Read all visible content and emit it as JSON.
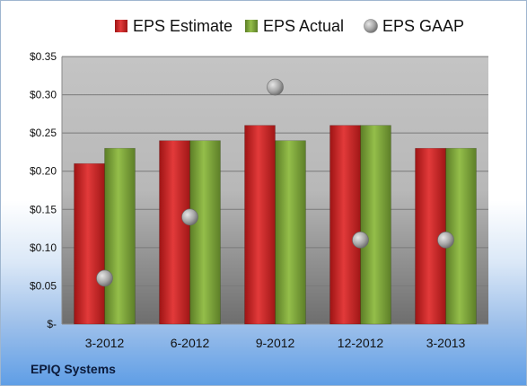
{
  "company": "EPIQ Systems",
  "legend": [
    {
      "label": "EPS Estimate",
      "shape": "square",
      "color": "#cc1f1f"
    },
    {
      "label": "EPS Actual",
      "shape": "square",
      "color": "#7da337"
    },
    {
      "label": "EPS GAAP",
      "shape": "circle",
      "color": "#a9a9a9"
    }
  ],
  "chart_data": {
    "type": "bar",
    "categories": [
      "3-2012",
      "6-2012",
      "9-2012",
      "12-2012",
      "3-2013"
    ],
    "series": [
      {
        "name": "EPS Estimate",
        "type": "bar",
        "color": "#cc1f1f",
        "values": [
          0.21,
          0.24,
          0.26,
          0.26,
          0.23
        ]
      },
      {
        "name": "EPS Actual",
        "type": "bar",
        "color": "#7da337",
        "values": [
          0.23,
          0.24,
          0.24,
          0.26,
          0.23
        ]
      },
      {
        "name": "EPS GAAP",
        "type": "scatter",
        "color": "#a9a9a9",
        "values": [
          0.06,
          0.14,
          0.31,
          0.11,
          0.11
        ]
      }
    ],
    "ylim": [
      0,
      0.35
    ],
    "yticks": [
      0,
      0.05,
      0.1,
      0.15,
      0.2,
      0.25,
      0.3,
      0.35
    ],
    "ytick_labels": [
      "$-",
      "$0.05",
      "$0.10",
      "$0.15",
      "$0.20",
      "$0.25",
      "$0.30",
      "$0.35"
    ],
    "title": "",
    "xlabel": "",
    "ylabel": "",
    "grid": true,
    "legend_position": "top"
  }
}
